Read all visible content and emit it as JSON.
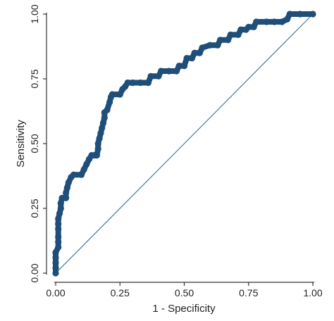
{
  "colors": {
    "background": "#ffffff",
    "axis": "#333333",
    "roc_curve": "#1f4e79",
    "reference_line": "#4a7a8c"
  },
  "chart_data": {
    "type": "line",
    "title": "",
    "xlabel": "1 - Specificity",
    "ylabel": "Sensitivity",
    "xlim": [
      0,
      1
    ],
    "ylim": [
      0,
      1
    ],
    "grid": false,
    "x_ticks": [
      "0.00",
      "0.25",
      "0.50",
      "0.75",
      "1.00"
    ],
    "y_ticks": [
      "0.00",
      "0.25",
      "0.50",
      "0.75",
      "1.00"
    ],
    "series": [
      {
        "role": "roc_curve",
        "marker": "circle",
        "points": [
          [
            0.0,
            0.0
          ],
          [
            0.0,
            0.02
          ],
          [
            0.0,
            0.04
          ],
          [
            0.0,
            0.06
          ],
          [
            0.0,
            0.08
          ],
          [
            0.01,
            0.1
          ],
          [
            0.01,
            0.12
          ],
          [
            0.01,
            0.14
          ],
          [
            0.01,
            0.17
          ],
          [
            0.01,
            0.19
          ],
          [
            0.01,
            0.21
          ],
          [
            0.015,
            0.23
          ],
          [
            0.02,
            0.25
          ],
          [
            0.02,
            0.27
          ],
          [
            0.025,
            0.29
          ],
          [
            0.04,
            0.29
          ],
          [
            0.04,
            0.31
          ],
          [
            0.045,
            0.33
          ],
          [
            0.05,
            0.35
          ],
          [
            0.06,
            0.37
          ],
          [
            0.07,
            0.38
          ],
          [
            0.1,
            0.38
          ],
          [
            0.11,
            0.4
          ],
          [
            0.12,
            0.42
          ],
          [
            0.13,
            0.44
          ],
          [
            0.14,
            0.455
          ],
          [
            0.15,
            0.455
          ],
          [
            0.16,
            0.455
          ],
          [
            0.165,
            0.48
          ],
          [
            0.165,
            0.5
          ],
          [
            0.17,
            0.52
          ],
          [
            0.175,
            0.54
          ],
          [
            0.18,
            0.56
          ],
          [
            0.185,
            0.58
          ],
          [
            0.19,
            0.6
          ],
          [
            0.19,
            0.62
          ],
          [
            0.2,
            0.63
          ],
          [
            0.21,
            0.66
          ],
          [
            0.215,
            0.68
          ],
          [
            0.22,
            0.69
          ],
          [
            0.25,
            0.69
          ],
          [
            0.26,
            0.71
          ],
          [
            0.27,
            0.72
          ],
          [
            0.28,
            0.735
          ],
          [
            0.3,
            0.735
          ],
          [
            0.33,
            0.735
          ],
          [
            0.36,
            0.735
          ],
          [
            0.37,
            0.76
          ],
          [
            0.4,
            0.76
          ],
          [
            0.41,
            0.78
          ],
          [
            0.44,
            0.78
          ],
          [
            0.47,
            0.78
          ],
          [
            0.48,
            0.8
          ],
          [
            0.5,
            0.8
          ],
          [
            0.51,
            0.83
          ],
          [
            0.53,
            0.83
          ],
          [
            0.54,
            0.85
          ],
          [
            0.56,
            0.85
          ],
          [
            0.57,
            0.87
          ],
          [
            0.6,
            0.88
          ],
          [
            0.63,
            0.88
          ],
          [
            0.64,
            0.9
          ],
          [
            0.67,
            0.9
          ],
          [
            0.68,
            0.92
          ],
          [
            0.71,
            0.92
          ],
          [
            0.72,
            0.94
          ],
          [
            0.74,
            0.94
          ],
          [
            0.75,
            0.95
          ],
          [
            0.77,
            0.95
          ],
          [
            0.78,
            0.97
          ],
          [
            0.82,
            0.97
          ],
          [
            0.85,
            0.97
          ],
          [
            0.88,
            0.97
          ],
          [
            0.9,
            0.98
          ],
          [
            0.91,
            1.0
          ],
          [
            0.95,
            1.0
          ],
          [
            1.0,
            1.0
          ]
        ]
      },
      {
        "role": "reference_line",
        "marker": "none",
        "points": [
          [
            0.0,
            0.0
          ],
          [
            1.0,
            1.0
          ]
        ]
      }
    ]
  }
}
